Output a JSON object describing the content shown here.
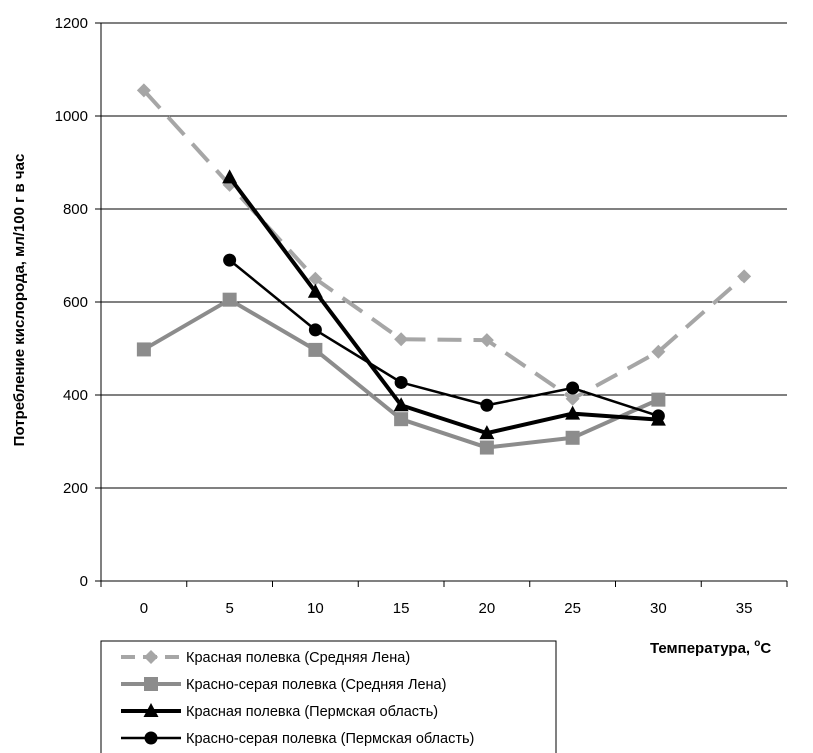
{
  "chart_data": {
    "type": "line",
    "title": "",
    "xlabel": "Температура, °С",
    "xlabel_main": "Температура, ",
    "xlabel_sup": "o",
    "xlabel_unit": "С",
    "ylabel": "Потребление кислорода, мл/100 г в час",
    "x": [
      0,
      5,
      10,
      15,
      20,
      25,
      30,
      35
    ],
    "x_tick_labels": [
      "0",
      "5",
      "10",
      "15",
      "20",
      "25",
      "30",
      "35"
    ],
    "y_tick_labels": [
      "0",
      "200",
      "400",
      "600",
      "800",
      "1000",
      "1200"
    ],
    "ylim": [
      0,
      1200
    ],
    "grid": "horizontal",
    "legend_position": "bottom-left",
    "series": [
      {
        "name": "Красная полевка (Средняя Лена)",
        "color": "#a6a6a6",
        "marker": "diamond",
        "dash": "dashed",
        "values": [
          1055,
          852,
          650,
          520,
          518,
          392,
          493,
          655
        ]
      },
      {
        "name": "Красно-серая полевка (Средняя Лена)",
        "color": "#8c8c8c",
        "marker": "square",
        "dash": "solid",
        "values": [
          498,
          605,
          497,
          348,
          287,
          308,
          390,
          null
        ]
      },
      {
        "name": "Красная полевка (Пермская область)",
        "color": "#000000",
        "marker": "triangle",
        "dash": "solid",
        "values": [
          null,
          868,
          622,
          378,
          318,
          360,
          347,
          null
        ]
      },
      {
        "name": "Красно-серая полевка (Пермская область)",
        "color": "#000000",
        "marker": "circle",
        "dash": "solid",
        "values": [
          null,
          690,
          540,
          427,
          378,
          415,
          355,
          null
        ]
      }
    ]
  }
}
